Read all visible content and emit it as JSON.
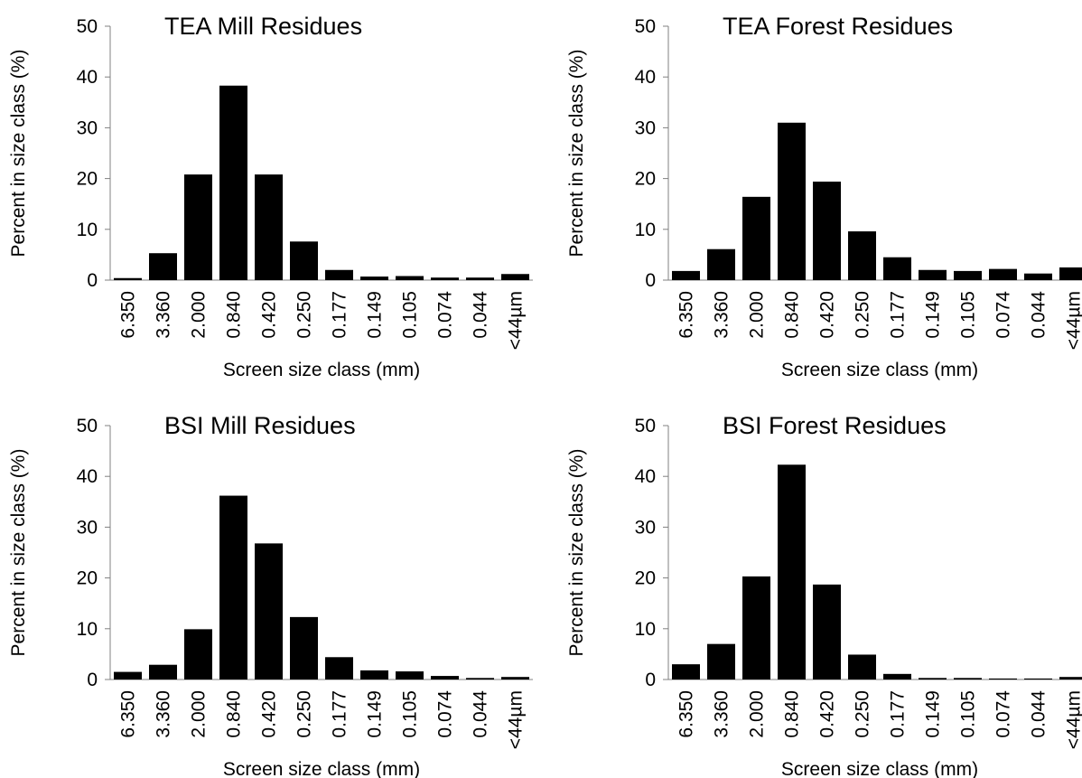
{
  "chart_data": [
    {
      "type": "bar",
      "title": "TEA  Mill Residues",
      "xlabel": "Screen size class (mm)",
      "ylabel": "Percent in size class (%)",
      "ylim": [
        0,
        50
      ],
      "yticks": [
        "0",
        "10",
        "20",
        "30",
        "40",
        "50"
      ],
      "categories": [
        "6.350",
        "3.360",
        "2.000",
        "0.840",
        "0.420",
        "0.250",
        "0.177",
        "0.149",
        "0.105",
        "0.074",
        "0.044",
        "<44µm"
      ],
      "values": [
        0.4,
        5.3,
        20.8,
        38.3,
        20.8,
        7.6,
        2.0,
        0.7,
        0.8,
        0.5,
        0.5,
        1.2
      ],
      "bar_color": "#000000",
      "grid": false,
      "legend": "none"
    },
    {
      "type": "bar",
      "title": "TEA Forest Residues",
      "xlabel": "Screen size class (mm)",
      "ylabel": "Percent in size class (%)",
      "ylim": [
        0,
        50
      ],
      "yticks": [
        "0",
        "10",
        "20",
        "30",
        "40",
        "50"
      ],
      "categories": [
        "6.350",
        "3.360",
        "2.000",
        "0.840",
        "0.420",
        "0.250",
        "0.177",
        "0.149",
        "0.105",
        "0.074",
        "0.044",
        "<44µm"
      ],
      "values": [
        1.8,
        6.1,
        16.4,
        31.0,
        19.4,
        9.6,
        4.5,
        2.0,
        1.8,
        2.2,
        1.3,
        2.5
      ],
      "bar_color": "#000000",
      "grid": false,
      "legend": "none"
    },
    {
      "type": "bar",
      "title": "BSI Mill Residues",
      "xlabel": "Screen size class (mm)",
      "ylabel": "Percent in size class (%)",
      "ylim": [
        0,
        50
      ],
      "yticks": [
        "0",
        "10",
        "20",
        "30",
        "40",
        "50"
      ],
      "categories": [
        "6.350",
        "3.360",
        "2.000",
        "0.840",
        "0.420",
        "0.250",
        "0.177",
        "0.149",
        "0.105",
        "0.074",
        "0.044",
        "<44µm"
      ],
      "values": [
        1.5,
        2.9,
        9.9,
        36.2,
        26.8,
        12.3,
        4.4,
        1.8,
        1.6,
        0.7,
        0.3,
        0.5
      ],
      "bar_color": "#000000",
      "grid": false,
      "legend": "none"
    },
    {
      "type": "bar",
      "title": "BSI Forest Residues",
      "xlabel": "Screen size class (mm)",
      "ylabel": "Percent in size class (%)",
      "ylim": [
        0,
        50
      ],
      "yticks": [
        "0",
        "10",
        "20",
        "30",
        "40",
        "50"
      ],
      "categories": [
        "6.350",
        "3.360",
        "2.000",
        "0.840",
        "0.420",
        "0.250",
        "0.177",
        "0.149",
        "0.105",
        "0.074",
        "0.044",
        "<44µm"
      ],
      "values": [
        3.0,
        7.0,
        20.3,
        42.3,
        18.7,
        4.9,
        1.1,
        0.3,
        0.3,
        0.2,
        0.2,
        0.5
      ],
      "bar_color": "#000000",
      "grid": false,
      "legend": "none"
    }
  ]
}
